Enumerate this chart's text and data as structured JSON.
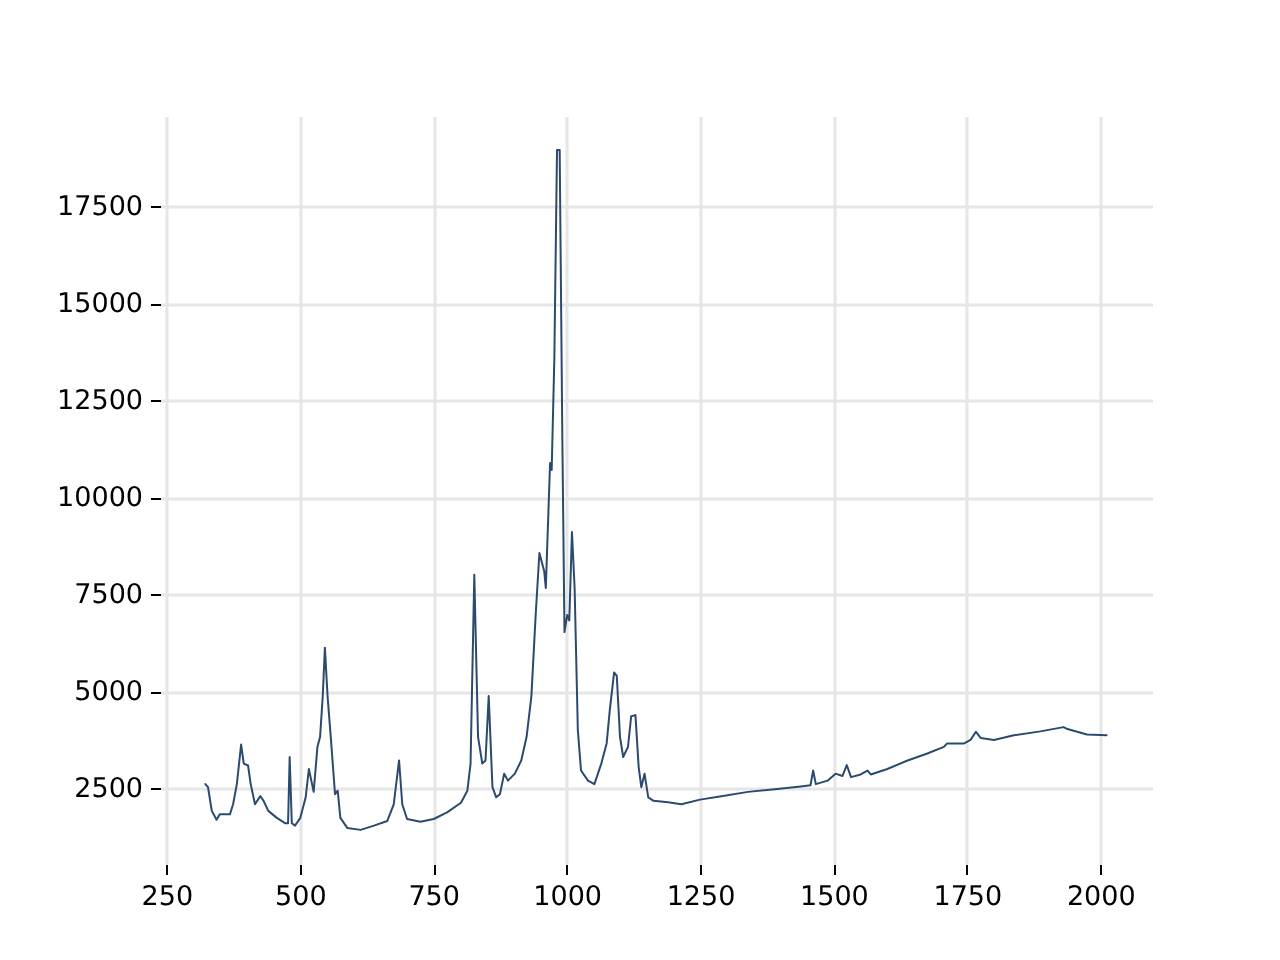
{
  "chart_data": {
    "type": "line",
    "x": [
      323,
      328,
      335,
      344,
      350,
      369,
      375,
      382,
      390,
      395,
      403,
      408,
      416,
      426,
      432,
      441,
      457,
      473,
      478,
      481,
      485,
      491,
      501,
      511,
      517,
      526,
      533,
      538,
      543,
      547,
      552,
      558,
      566,
      571,
      576,
      589,
      614,
      639,
      664,
      676,
      686,
      692,
      701,
      726,
      751,
      776,
      802,
      814,
      820,
      827,
      834,
      842,
      848,
      854,
      861,
      868,
      875,
      883,
      890,
      903,
      915,
      925,
      934,
      942,
      949,
      958,
      961,
      969,
      972,
      977,
      982,
      987,
      992,
      996,
      1001,
      1005,
      1010,
      1015,
      1021,
      1027,
      1040,
      1052,
      1065,
      1075,
      1081,
      1089,
      1094,
      1100,
      1106,
      1115,
      1121,
      1129,
      1135,
      1140,
      1146,
      1153,
      1163,
      1190,
      1215,
      1250,
      1290,
      1340,
      1390,
      1439,
      1457,
      1462,
      1467,
      1489,
      1504,
      1517,
      1525,
      1533,
      1551,
      1564,
      1570,
      1601,
      1639,
      1676,
      1707,
      1713,
      1745,
      1757,
      1767,
      1776,
      1801,
      1838,
      1888,
      1931,
      1937,
      1975,
      2012
    ],
    "series": [
      {
        "color": "#2c4a6e",
        "values": [
          2600,
          2520,
          1910,
          1680,
          1820,
          1820,
          2080,
          2600,
          3620,
          3130,
          3080,
          2600,
          2080,
          2290,
          2170,
          1910,
          1730,
          1590,
          1590,
          3300,
          1590,
          1530,
          1730,
          2260,
          2990,
          2400,
          3560,
          3820,
          4870,
          6120,
          4870,
          3820,
          2340,
          2430,
          1730,
          1470,
          1420,
          1530,
          1650,
          2080,
          3210,
          2080,
          1700,
          1630,
          1700,
          1870,
          2120,
          2430,
          3130,
          8000,
          3820,
          3130,
          3210,
          4870,
          2520,
          2260,
          2340,
          2870,
          2690,
          2870,
          3210,
          3820,
          4870,
          6960,
          8560,
          8090,
          7660,
          10880,
          10700,
          13580,
          18950,
          18950,
          11490,
          6520,
          6960,
          6820,
          9100,
          7660,
          4000,
          2950,
          2690,
          2600,
          3130,
          3650,
          4520,
          5480,
          5390,
          3820,
          3300,
          3560,
          4350,
          4380,
          3040,
          2520,
          2870,
          2260,
          2170,
          2130,
          2080,
          2200,
          2290,
          2400,
          2470,
          2540,
          2570,
          2950,
          2600,
          2690,
          2870,
          2810,
          3090,
          2780,
          2850,
          2950,
          2850,
          2990,
          3210,
          3390,
          3560,
          3650,
          3650,
          3740,
          3950,
          3790,
          3740,
          3860,
          3960,
          4070,
          4030,
          3880,
          3860
        ]
      }
    ],
    "xlim": [
      238,
      2097
    ],
    "ylim": [
      540,
      19830
    ],
    "xticks": [
      250,
      500,
      750,
      1000,
      1250,
      1500,
      1750,
      2000
    ],
    "yticks": [
      2500,
      5000,
      7500,
      10000,
      12500,
      15000,
      17500
    ],
    "grid": true,
    "line_style": "solid"
  }
}
